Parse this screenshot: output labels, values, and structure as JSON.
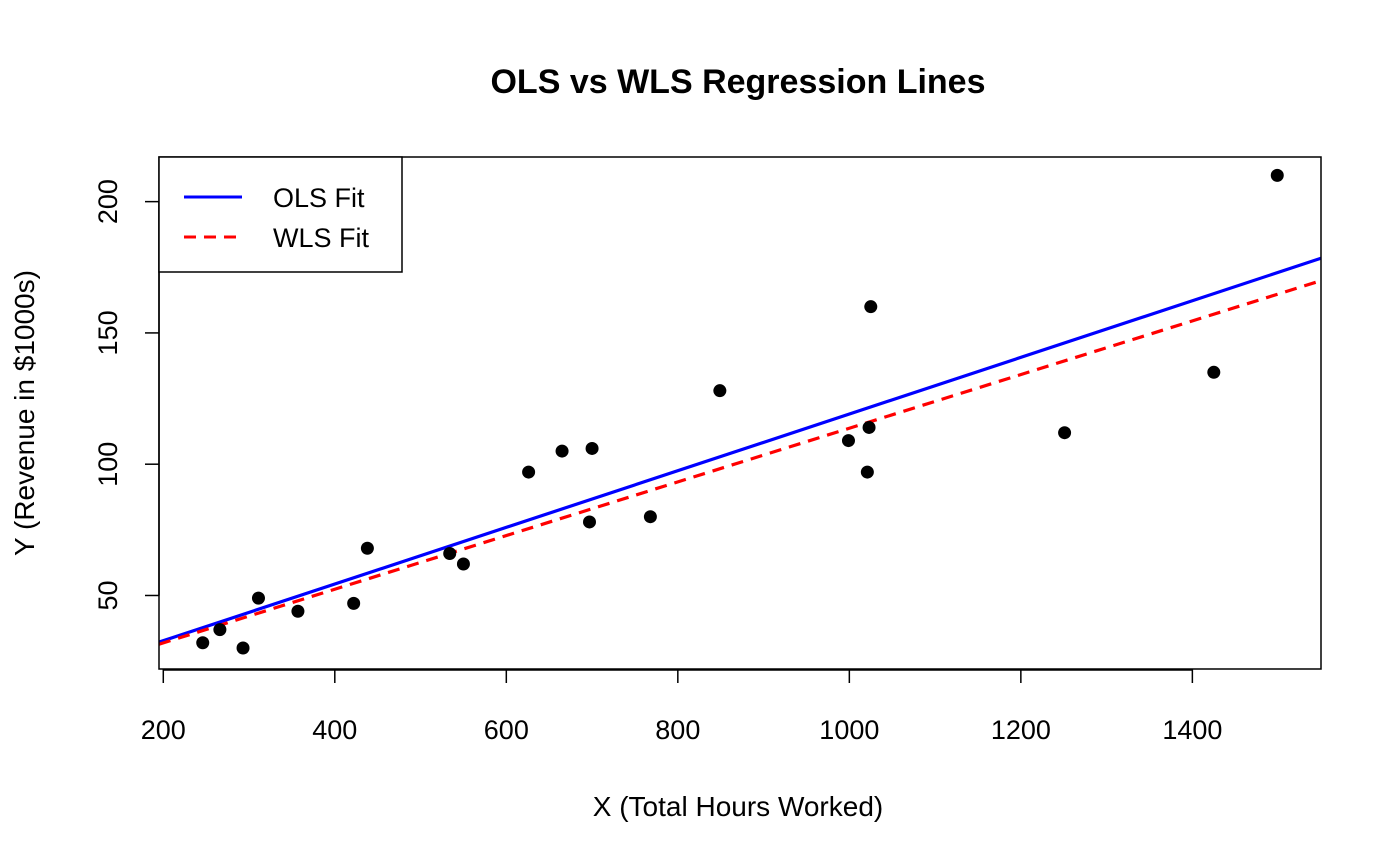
{
  "chart_data": {
    "type": "scatter",
    "title": "OLS vs WLS Regression Lines",
    "xlabel": "X (Total Hours Worked)",
    "ylabel": "Y (Revenue in $1000s)",
    "xlim": [
      195,
      1550
    ],
    "ylim": [
      22,
      217
    ],
    "x_ticks": [
      200,
      400,
      600,
      800,
      1000,
      1200,
      1400
    ],
    "y_ticks": [
      50,
      100,
      150,
      200
    ],
    "legend_position": "top-left",
    "points": {
      "x": [
        246,
        266,
        293,
        311,
        357,
        422,
        438,
        534,
        550,
        626,
        665,
        697,
        700,
        768,
        849,
        999,
        1021,
        1023,
        1025,
        1251,
        1425,
        1499
      ],
      "y": [
        32,
        37,
        30,
        49,
        44,
        47,
        68,
        66,
        62,
        97,
        105,
        78,
        106,
        80,
        128,
        109,
        97,
        114,
        160,
        112,
        135,
        210
      ],
      "color": "#000000"
    },
    "lines": [
      {
        "name": "OLS Fit",
        "color": "#0000ff",
        "style": "solid",
        "intercept": 11.2,
        "slope": 0.1079
      },
      {
        "name": "WLS Fit",
        "color": "#ff0000",
        "style": "dashed",
        "intercept": 11.5,
        "slope": 0.1022
      }
    ]
  }
}
